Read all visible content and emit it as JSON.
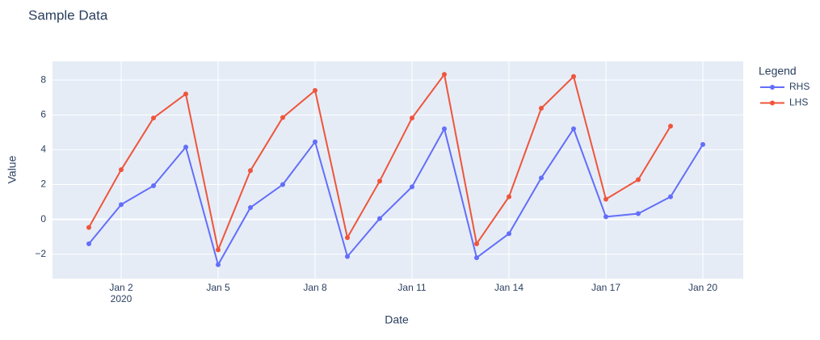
{
  "chart_data": {
    "type": "line",
    "title": "Sample Data",
    "x_label": "Date",
    "y_label": "Value",
    "legend_title": "Legend",
    "legend": "top-right-outside",
    "grid": true,
    "x": [
      "2020-01-01",
      "2020-01-02",
      "2020-01-03",
      "2020-01-04",
      "2020-01-05",
      "2020-01-06",
      "2020-01-07",
      "2020-01-08",
      "2020-01-09",
      "2020-01-10",
      "2020-01-11",
      "2020-01-12",
      "2020-01-13",
      "2020-01-14",
      "2020-01-15",
      "2020-01-16",
      "2020-01-17",
      "2020-01-18",
      "2020-01-19",
      "2020-01-20"
    ],
    "xlim": [
      "2019-12-30T21:00",
      "2020-01-21T06:00"
    ],
    "xticks": [
      {
        "value": "2020-01-02",
        "label": "Jan 2\n2020"
      },
      {
        "value": "2020-01-05",
        "label": "Jan 5"
      },
      {
        "value": "2020-01-08",
        "label": "Jan 8"
      },
      {
        "value": "2020-01-11",
        "label": "Jan 11"
      },
      {
        "value": "2020-01-14",
        "label": "Jan 14"
      },
      {
        "value": "2020-01-17",
        "label": "Jan 17"
      },
      {
        "value": "2020-01-20",
        "label": "Jan 20"
      }
    ],
    "ylim": [
      -3.4,
      9.07
    ],
    "yticks": [
      {
        "value": -2,
        "label": "−2"
      },
      0,
      2,
      4,
      6,
      8
    ],
    "series": [
      {
        "name": "RHS",
        "color": "#636efa",
        "values": [
          -1.4,
          0.85,
          1.93,
          4.15,
          -2.6,
          0.68,
          2.0,
          4.45,
          -2.13,
          0.05,
          1.87,
          5.2,
          -2.2,
          -0.82,
          2.38,
          5.2,
          0.15,
          0.33,
          1.3,
          4.3
        ]
      },
      {
        "name": "LHS",
        "color": "#EF553B",
        "values": [
          -0.46,
          2.85,
          5.82,
          7.2,
          -1.75,
          2.8,
          5.85,
          7.4,
          -1.05,
          2.2,
          5.82,
          8.32,
          -1.4,
          1.3,
          6.38,
          8.2,
          1.16,
          2.28,
          5.35,
          null
        ]
      }
    ]
  }
}
